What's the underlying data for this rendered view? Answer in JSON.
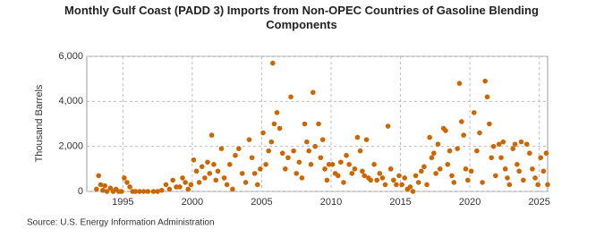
{
  "chart_data": {
    "type": "scatter",
    "title": "Monthly Gulf Coast (PADD 3) Imports from Non-OPEC Countries of Gasoline Blending Components",
    "y_label": "Thousand Barrels",
    "source": "Source: U.S. Energy Information Administration",
    "color": "#cc6600",
    "grid": true,
    "xlim": [
      1992.4,
      2025.6
    ],
    "xticks": [
      1995,
      2000,
      2005,
      2010,
      2015,
      2020,
      2025
    ],
    "ylim": [
      0,
      6000
    ],
    "yticks": [
      0,
      {
        "value": 2000,
        "label": "2,000"
      },
      {
        "value": 4000,
        "label": "4,000"
      },
      {
        "value": 6000,
        "label": "6,000"
      }
    ],
    "x": [
      1993.1,
      1993.25,
      1993.4,
      1993.55,
      1993.7,
      1993.85,
      1994.1,
      1994.3,
      1994.5,
      1994.7,
      1994.9,
      1995.1,
      1995.3,
      1995.5,
      1995.7,
      1995.9,
      1996.2,
      1996.5,
      1996.8,
      1997.2,
      1997.5,
      1997.8,
      1998.1,
      1998.35,
      1998.6,
      1998.85,
      1999.1,
      1999.3,
      1999.5,
      1999.7,
      1999.9,
      2000.1,
      2000.3,
      2000.5,
      2000.7,
      2000.9,
      2001.1,
      2001.25,
      2001.4,
      2001.55,
      2001.7,
      2001.85,
      2002.1,
      2002.3,
      2002.5,
      2002.7,
      2002.9,
      2003.1,
      2003.35,
      2003.6,
      2003.85,
      2004.1,
      2004.3,
      2004.5,
      2004.7,
      2004.9,
      2005.1,
      2005.3,
      2005.5,
      2005.7,
      2005.8,
      2005.9,
      2006.1,
      2006.3,
      2006.5,
      2006.7,
      2006.9,
      2007.1,
      2007.3,
      2007.5,
      2007.7,
      2007.9,
      2008.1,
      2008.25,
      2008.4,
      2008.55,
      2008.7,
      2008.85,
      2009.1,
      2009.25,
      2009.4,
      2009.55,
      2009.7,
      2009.85,
      2010.1,
      2010.3,
      2010.5,
      2010.7,
      2010.9,
      2011.1,
      2011.3,
      2011.5,
      2011.7,
      2011.9,
      2012.1,
      2012.25,
      2012.4,
      2012.55,
      2012.7,
      2012.85,
      2013.1,
      2013.3,
      2013.5,
      2013.7,
      2013.9,
      2014.1,
      2014.3,
      2014.5,
      2014.7,
      2014.9,
      2015.1,
      2015.3,
      2015.5,
      2015.7,
      2015.9,
      2016.1,
      2016.3,
      2016.5,
      2016.7,
      2016.9,
      2017.1,
      2017.25,
      2017.4,
      2017.55,
      2017.7,
      2017.85,
      2018.1,
      2018.25,
      2018.4,
      2018.55,
      2018.7,
      2018.85,
      2019.1,
      2019.25,
      2019.4,
      2019.55,
      2019.7,
      2019.85,
      2020.1,
      2020.3,
      2020.5,
      2020.7,
      2020.9,
      2021.1,
      2021.25,
      2021.4,
      2021.55,
      2021.7,
      2021.85,
      2022.1,
      2022.25,
      2022.4,
      2022.55,
      2022.7,
      2022.85,
      2023.1,
      2023.25,
      2023.4,
      2023.55,
      2023.7,
      2023.85,
      2024.1,
      2024.3,
      2024.5,
      2024.7,
      2024.9,
      2025.1,
      2025.3,
      2025.5,
      2025.6
    ],
    "values": [
      100,
      700,
      300,
      50,
      250,
      0,
      150,
      0,
      100,
      0,
      0,
      600,
      400,
      200,
      0,
      0,
      0,
      0,
      0,
      0,
      0,
      50,
      300,
      100,
      500,
      200,
      200,
      600,
      400,
      100,
      300,
      1400,
      900,
      400,
      1100,
      600,
      1300,
      800,
      2500,
      1200,
      500,
      900,
      1900,
      600,
      300,
      1200,
      100,
      1600,
      1900,
      800,
      400,
      2300,
      1500,
      800,
      300,
      1000,
      2600,
      1200,
      1800,
      2200,
      5700,
      3000,
      3500,
      2800,
      1700,
      1000,
      1500,
      4200,
      1800,
      800,
      1300,
      600,
      3000,
      2200,
      1800,
      1200,
      4400,
      2000,
      3000,
      1500,
      2300,
      1000,
      500,
      1200,
      1200,
      800,
      700,
      1300,
      400,
      1600,
      1200,
      800,
      1000,
      2400,
      1800,
      900,
      700,
      2300,
      600,
      500,
      1200,
      500,
      800,
      600,
      300,
      2900,
      1000,
      500,
      300,
      700,
      300,
      600,
      100,
      200,
      0,
      700,
      400,
      900,
      1100,
      300,
      2400,
      1500,
      1700,
      800,
      2100,
      1000,
      2800,
      2700,
      1200,
      1800,
      700,
      400,
      1900,
      4800,
      3100,
      2500,
      1000,
      500,
      900,
      3500,
      1800,
      2600,
      400,
      4900,
      4200,
      3000,
      1500,
      2000,
      700,
      2100,
      1500,
      2200,
      1000,
      600,
      300,
      1900,
      2100,
      1200,
      900,
      2200,
      500,
      2100,
      1700,
      1000,
      600,
      300,
      1500,
      900,
      1700,
      300
    ]
  }
}
